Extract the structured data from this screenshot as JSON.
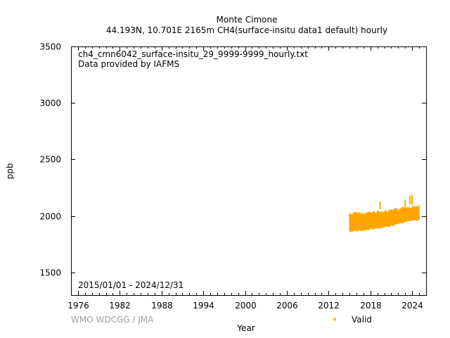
{
  "chart_data": {
    "type": "scatter",
    "title": "Monte Cimone",
    "subtitle": "44.193N, 10.701E 2165m    CH4(surface-insitu data1 default) hourly",
    "annotation_lines": [
      "ch4_cmn6042_surface-insitu_29_9999-9999_hourly.txt",
      "Data provided by IAFMS"
    ],
    "date_range": "2015/01/01 - 2024/12/31",
    "xlabel": "Year",
    "ylabel": "ppb",
    "xlim": [
      1975,
      2026
    ],
    "ylim": [
      1300,
      3500
    ],
    "x_ticks": [
      1976,
      1982,
      1988,
      1994,
      2000,
      2006,
      2012,
      2018,
      2024
    ],
    "y_ticks": [
      1500,
      2000,
      2500,
      3000,
      3500
    ],
    "grid": false,
    "legend_position": "bottom-right",
    "series": [
      {
        "name": "Valid",
        "color": "#FFA500",
        "band": [
          {
            "x": 2015.0,
            "low": 1855,
            "high": 2030
          },
          {
            "x": 2016.0,
            "low": 1860,
            "high": 2040
          },
          {
            "x": 2017.0,
            "low": 1865,
            "high": 2035
          },
          {
            "x": 2018.0,
            "low": 1875,
            "high": 2045
          },
          {
            "x": 2019.0,
            "low": 1880,
            "high": 2050
          },
          {
            "x": 2020.0,
            "low": 1895,
            "high": 2055
          },
          {
            "x": 2021.0,
            "low": 1905,
            "high": 2060
          },
          {
            "x": 2022.0,
            "low": 1925,
            "high": 2075
          },
          {
            "x": 2023.0,
            "low": 1940,
            "high": 2090
          },
          {
            "x": 2024.0,
            "low": 1950,
            "high": 2095
          },
          {
            "x": 2025.0,
            "low": 1955,
            "high": 2100
          }
        ],
        "spikes": [
          {
            "x": 2019.4,
            "low": 2060,
            "high": 2125
          },
          {
            "x": 2023.0,
            "low": 2080,
            "high": 2140
          },
          {
            "x": 2023.7,
            "low": 2100,
            "high": 2180
          },
          {
            "x": 2024.0,
            "low": 2100,
            "high": 2185
          }
        ]
      }
    ]
  },
  "footer": {
    "credit": "WMO WDCGG / JMA",
    "legend_label": "Valid"
  }
}
